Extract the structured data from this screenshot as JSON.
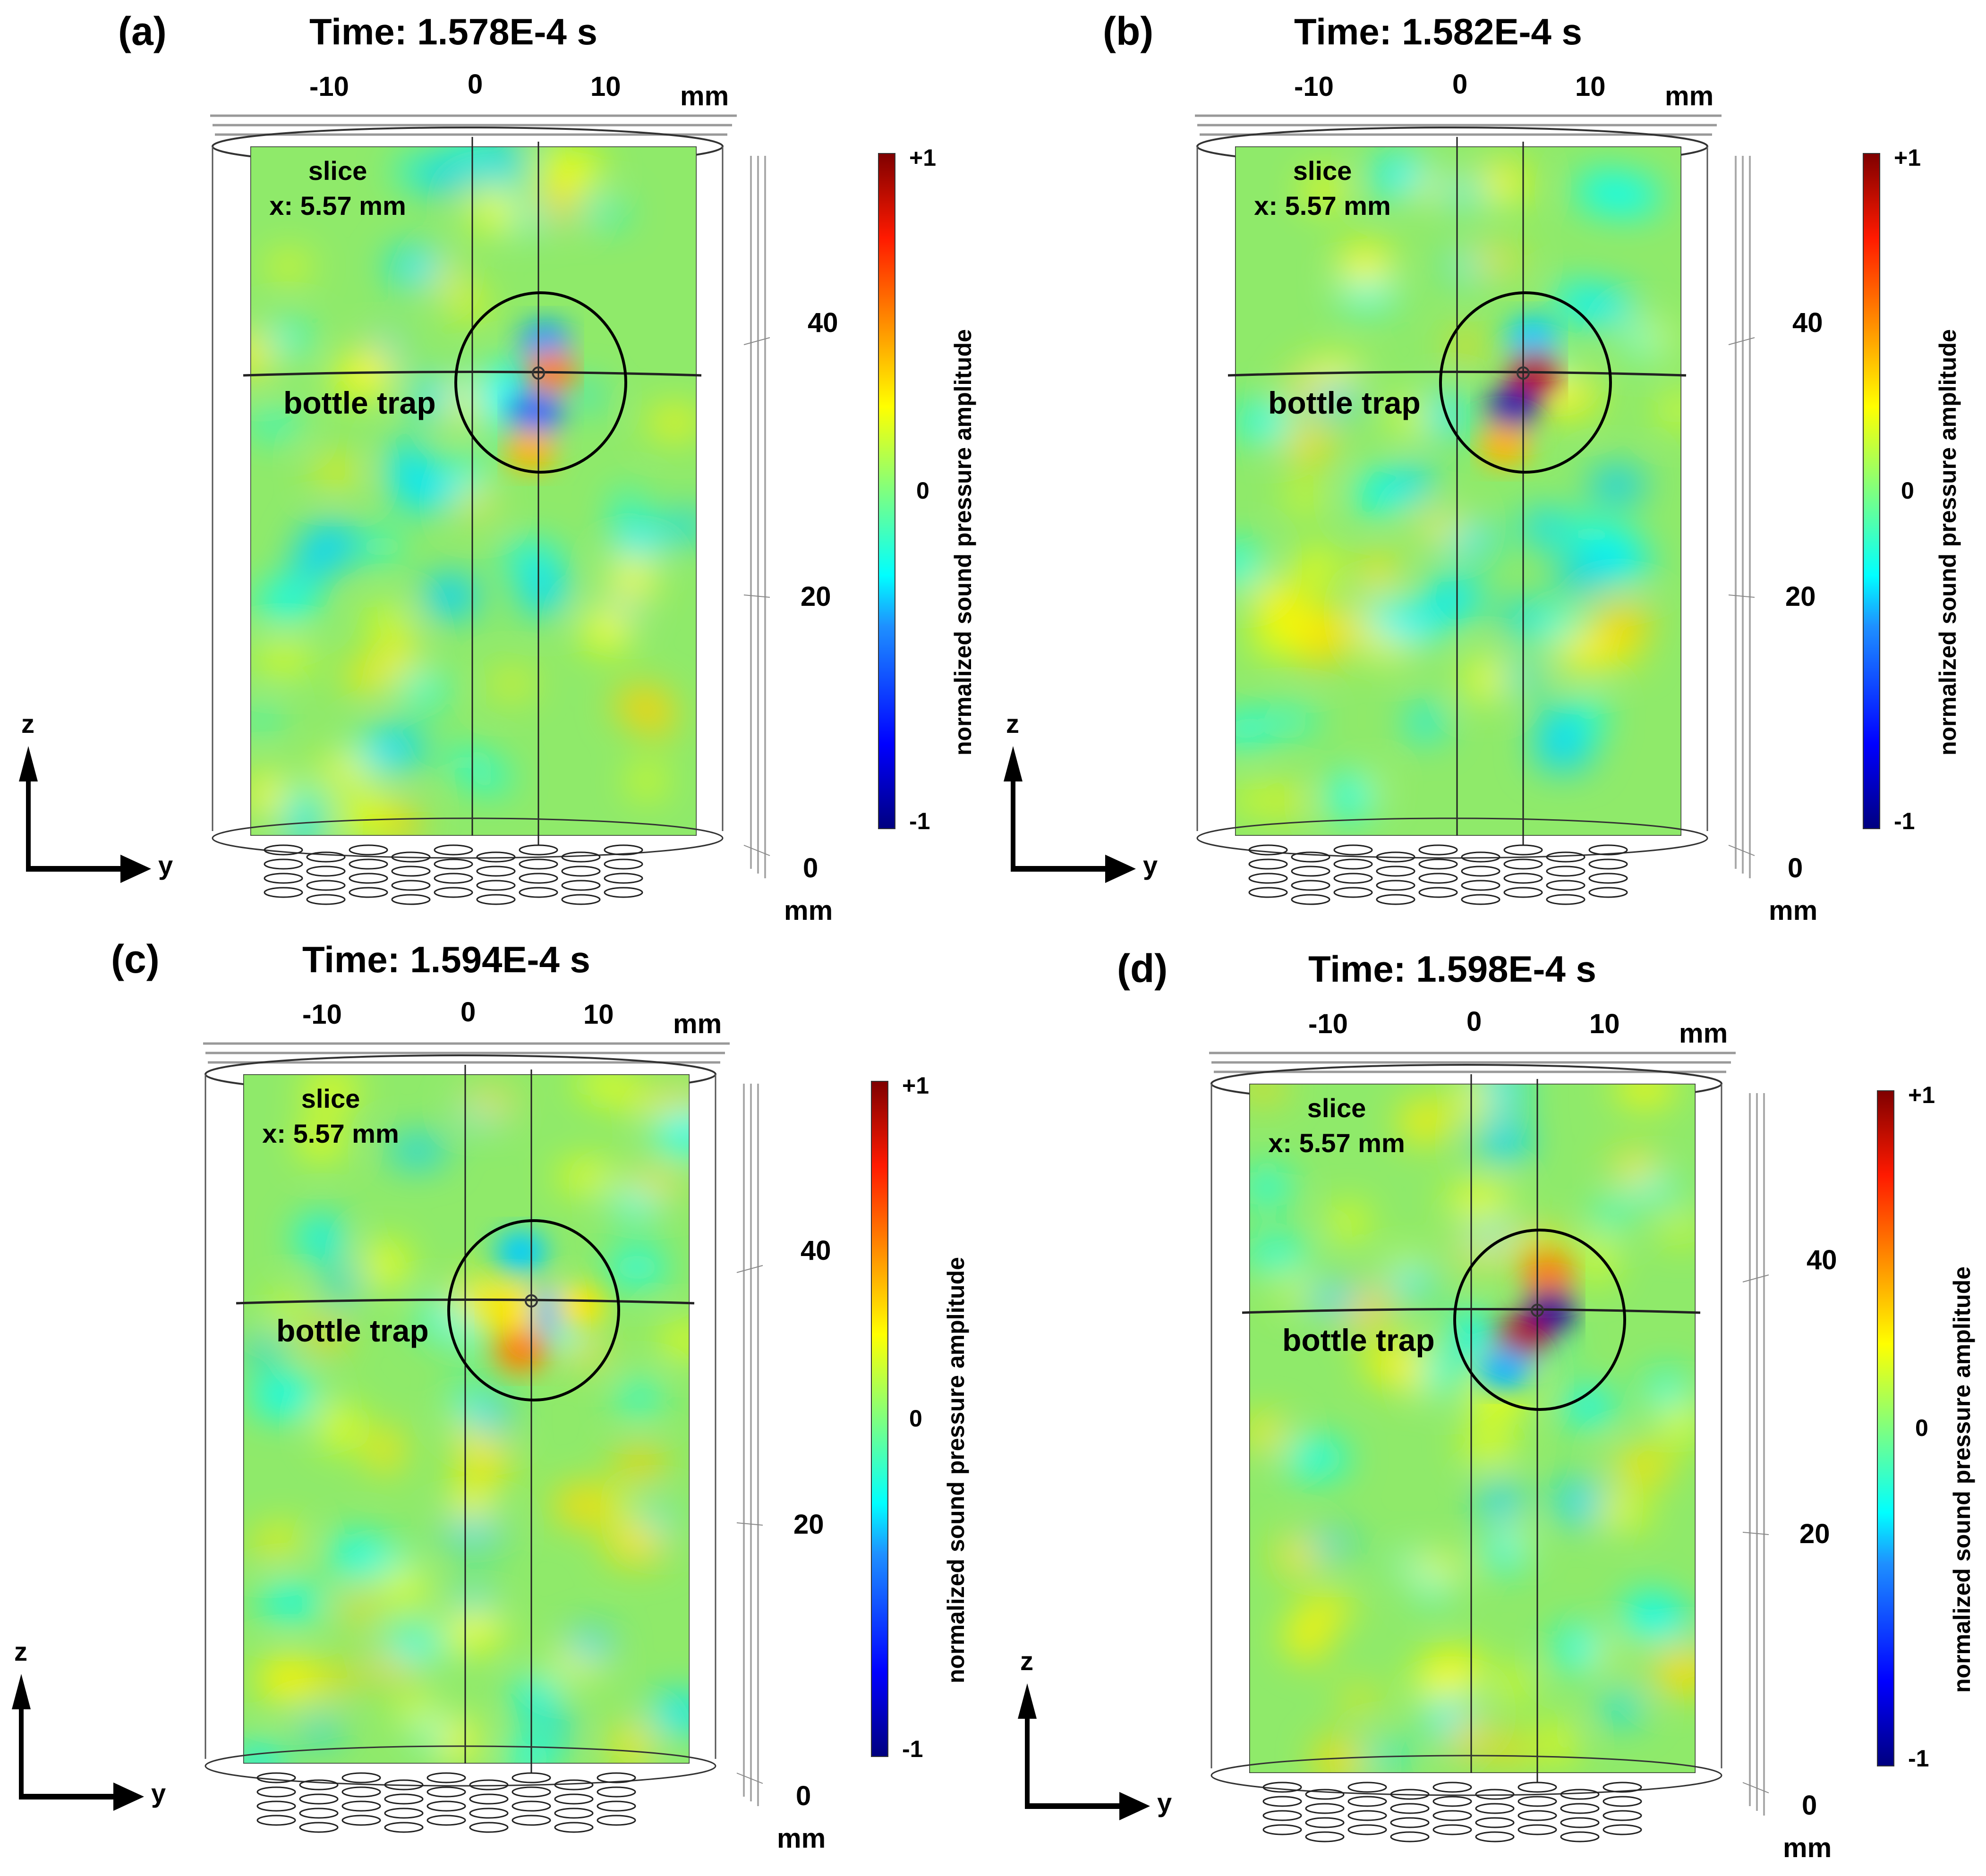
{
  "figure": {
    "colorbar": {
      "title": "normalized sound pressure amplitude",
      "max_label": "+1",
      "mid_label": "0",
      "min_label": "-1",
      "colormap": "jet",
      "stops": [
        "#00007f",
        "#0000ff",
        "#1e90ff",
        "#00ffff",
        "#7fff7f",
        "#ffff00",
        "#ff7f00",
        "#ff0000",
        "#7f0000"
      ]
    },
    "y_axis": {
      "ticks": [
        "-10",
        "0",
        "10"
      ],
      "unit": "mm"
    },
    "z_axis": {
      "ticks": [
        "40",
        "20",
        "0"
      ],
      "unit": "mm"
    },
    "triad": {
      "up": "z",
      "right": "y"
    },
    "slice": {
      "line1": "slice",
      "line2": "x: 5.57 mm"
    },
    "trap_label": "bottle trap",
    "background_field_color": "#8fea6a",
    "panels": [
      {
        "id": "a",
        "label": "(a)",
        "time": "Time: 1.578E-4 s",
        "blobs": [
          {
            "dx": 0.05,
            "dy": -0.45,
            "v": -0.45
          },
          {
            "dx": 0.12,
            "dy": -0.12,
            "v": 0.5
          },
          {
            "dx": -0.05,
            "dy": 0.35,
            "v": -0.55
          },
          {
            "dx": -0.12,
            "dy": 0.75,
            "v": 0.4
          }
        ]
      },
      {
        "id": "b",
        "label": "(b)",
        "time": "Time: 1.582E-4 s",
        "blobs": [
          {
            "dx": 0.08,
            "dy": -0.5,
            "v": -0.35
          },
          {
            "dx": 0.1,
            "dy": -0.12,
            "v": 0.9
          },
          {
            "dx": -0.15,
            "dy": 0.3,
            "v": -0.9
          },
          {
            "dx": -0.25,
            "dy": 0.7,
            "v": 0.4
          }
        ]
      },
      {
        "id": "c",
        "label": "(c)",
        "time": "Time: 1.594E-4 s",
        "blobs": [
          {
            "dx": -0.15,
            "dy": -0.65,
            "v": -0.35
          },
          {
            "dx": 0.12,
            "dy": 0.0,
            "v": -0.4
          },
          {
            "dx": -0.25,
            "dy": 0.0,
            "v": 0.3
          },
          {
            "dx": -0.15,
            "dy": 0.45,
            "v": 0.5
          },
          {
            "dx": 0.55,
            "dy": -0.05,
            "v": 0.3
          }
        ]
      },
      {
        "id": "d",
        "label": "(d)",
        "time": "Time: 1.598E-4 s",
        "blobs": [
          {
            "dx": 0.1,
            "dy": -0.5,
            "v": 0.5
          },
          {
            "dx": 0.12,
            "dy": -0.1,
            "v": -0.95
          },
          {
            "dx": -0.2,
            "dy": 0.2,
            "v": 0.9
          },
          {
            "dx": -0.4,
            "dy": 0.55,
            "v": -0.4
          }
        ]
      }
    ]
  }
}
